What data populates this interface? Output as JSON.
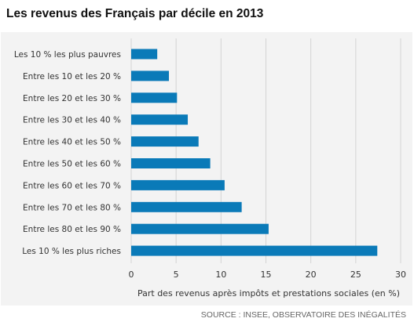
{
  "title": "Les revenus des Français par décile en 2013",
  "source": "SOURCE : INSEE, OBSERVATOIRE DES INÉGALITÉS",
  "colors": {
    "bar": "#0a7ab8",
    "grid": "#d4d4d4",
    "panel_background": "#f3f3f3",
    "text": "#333333"
  },
  "chart_data": {
    "type": "bar",
    "orientation": "horizontal",
    "categories": [
      "Les 10 % les plus pauvres",
      "Entre les 10 et les 20 %",
      "Entre les 20 et les 30 %",
      "Entre les 30 et les 40 %",
      "Entre les 40 et les 50 %",
      "Entre les 50 et les 60 %",
      "Entre les 60 et les 70 %",
      "Entre les 70 et les 80 %",
      "Entre les 80 et les 90 %",
      "Les 10 % les plus riches"
    ],
    "values": [
      2.9,
      4.2,
      5.1,
      6.3,
      7.5,
      8.8,
      10.4,
      12.3,
      15.3,
      27.4
    ],
    "xlabel": "Part des revenus après impôts et prestations sociales (en %)",
    "xlim": [
      0,
      30
    ],
    "xticks": [
      "0",
      "5",
      "10",
      "15",
      "20",
      "25",
      "30"
    ],
    "grid": true,
    "legend": "none"
  }
}
